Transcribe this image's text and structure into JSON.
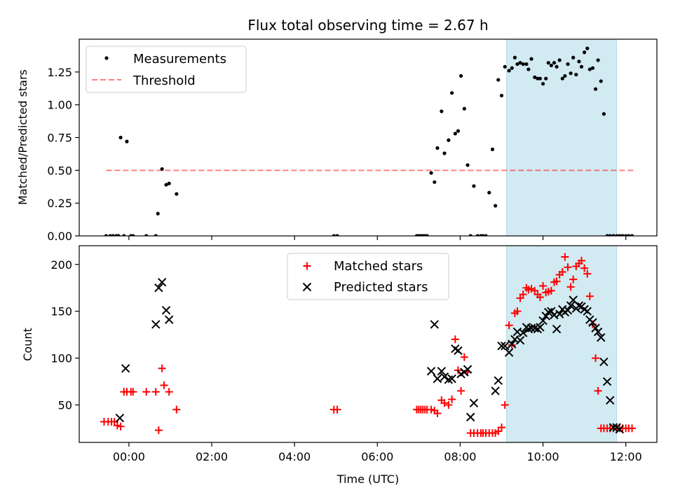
{
  "chart_data": [
    {
      "type": "scatter",
      "title": "Flux total observing time = 2.67 h",
      "xlabel": "",
      "ylabel": "Matched/Predicted stars",
      "xlim": [
        -1.2,
        12.75
      ],
      "ylim": [
        0,
        1.5
      ],
      "yticks": [
        0.0,
        0.25,
        0.5,
        0.75,
        1.0,
        1.25
      ],
      "ytick_labels": [
        "0.00",
        "0.25",
        "0.50",
        "0.75",
        "1.00",
        "1.25"
      ],
      "legend": {
        "placement": "top-left",
        "entries": [
          "Measurements",
          "Threshold"
        ]
      },
      "highlight_span": {
        "x_start": 9.12,
        "x_end": 11.78,
        "color": "#add8e6"
      },
      "threshold": {
        "value": 0.5,
        "x_start": -0.55,
        "x_end": 12.2,
        "color": "#ff0000",
        "style": "dashed"
      },
      "series": [
        {
          "name": "Measurements",
          "marker": "dot",
          "color": "#000000",
          "x": [
            -0.55,
            -0.45,
            -0.38,
            -0.3,
            -0.25,
            -0.2,
            -0.12,
            -0.05,
            0.05,
            0.1,
            0.42,
            0.65,
            0.7,
            0.8,
            0.9,
            0.97,
            1.15,
            4.95,
            5.03,
            6.95,
            7.0,
            7.05,
            7.1,
            7.15,
            7.2,
            7.3,
            7.38,
            7.45,
            7.55,
            7.62,
            7.72,
            7.8,
            7.88,
            7.95,
            8.02,
            8.1,
            8.18,
            8.25,
            8.33,
            8.42,
            8.5,
            8.55,
            8.62,
            8.7,
            8.78,
            8.85,
            8.92,
            9.0,
            9.08,
            9.18,
            9.25,
            9.32,
            9.38,
            9.45,
            9.52,
            9.6,
            9.65,
            9.72,
            9.8,
            9.87,
            9.93,
            10.0,
            10.07,
            10.13,
            10.2,
            10.27,
            10.33,
            10.4,
            10.47,
            10.53,
            10.6,
            10.67,
            10.73,
            10.8,
            10.87,
            10.93,
            11.0,
            11.07,
            11.13,
            11.2,
            11.27,
            11.33,
            11.4,
            11.47,
            11.55,
            11.62,
            11.7,
            11.78,
            11.85,
            11.92,
            12.0,
            12.07,
            12.15
          ],
          "y": [
            0,
            0,
            0,
            0,
            0,
            0.75,
            0,
            0.72,
            0,
            0,
            0,
            0,
            0.17,
            0.51,
            0.39,
            0.4,
            0.32,
            0,
            0,
            0,
            0,
            0,
            0,
            0,
            0,
            0.48,
            0.41,
            0.67,
            0.95,
            0.63,
            0.73,
            1.09,
            0.78,
            0.8,
            1.22,
            0.97,
            0.54,
            0,
            0.38,
            0,
            0,
            0,
            0,
            0.33,
            0.66,
            0.23,
            1.19,
            1.07,
            1.29,
            1.26,
            1.28,
            1.36,
            1.31,
            1.32,
            1.31,
            1.31,
            1.27,
            1.35,
            1.21,
            1.2,
            1.2,
            1.16,
            1.2,
            1.32,
            1.3,
            1.32,
            1.29,
            1.34,
            1.2,
            1.22,
            1.31,
            1.24,
            1.36,
            1.23,
            1.33,
            1.29,
            1.4,
            1.43,
            1.27,
            1.28,
            1.12,
            1.34,
            1.18,
            0.93,
            0,
            0,
            0,
            0,
            0,
            0,
            0,
            0,
            0
          ]
        }
      ]
    },
    {
      "type": "scatter",
      "title": "",
      "xlabel": "Time (UTC)",
      "ylabel": "Count",
      "xlim": [
        -1.2,
        12.75
      ],
      "ylim": [
        10,
        220
      ],
      "yticks": [
        50,
        100,
        150,
        200
      ],
      "ytick_labels": [
        "50",
        "100",
        "150",
        "200"
      ],
      "xticks": [
        0,
        2,
        4,
        6,
        8,
        10,
        12
      ],
      "xtick_labels": [
        "00:00",
        "02:00",
        "04:00",
        "06:00",
        "08:00",
        "10:00",
        "12:00"
      ],
      "legend": {
        "placement": "upper-center",
        "entries": [
          "Matched stars",
          "Predicted stars"
        ]
      },
      "highlight_span": {
        "x_start": 9.12,
        "x_end": 11.78,
        "color": "#add8e6"
      },
      "series": [
        {
          "name": "Matched stars",
          "marker": "plus",
          "color": "#ff0000",
          "x": [
            -0.6,
            -0.5,
            -0.42,
            -0.35,
            -0.28,
            -0.2,
            -0.12,
            -0.05,
            0.05,
            0.1,
            0.42,
            0.65,
            0.72,
            0.8,
            0.85,
            0.97,
            1.15,
            4.95,
            5.03,
            6.95,
            7.0,
            7.05,
            7.1,
            7.15,
            7.2,
            7.3,
            7.38,
            7.45,
            7.55,
            7.62,
            7.72,
            7.8,
            7.88,
            7.95,
            8.02,
            8.1,
            8.18,
            8.25,
            8.33,
            8.42,
            8.5,
            8.55,
            8.62,
            8.7,
            8.78,
            8.85,
            8.92,
            9.0,
            9.08,
            9.18,
            9.25,
            9.32,
            9.38,
            9.45,
            9.52,
            9.6,
            9.65,
            9.72,
            9.8,
            9.87,
            9.93,
            10.0,
            10.07,
            10.13,
            10.2,
            10.27,
            10.33,
            10.4,
            10.47,
            10.53,
            10.6,
            10.67,
            10.73,
            10.8,
            10.87,
            10.93,
            11.0,
            11.07,
            11.13,
            11.2,
            11.27,
            11.33,
            11.4,
            11.47,
            11.55,
            11.62,
            11.7,
            11.78,
            11.85,
            11.92,
            12.0,
            12.07,
            12.15
          ],
          "y": [
            32,
            32,
            32,
            32,
            28,
            27,
            64,
            64,
            64,
            64,
            64,
            64,
            23,
            89,
            71,
            64,
            45,
            45,
            45,
            45,
            45,
            45,
            45,
            45,
            45,
            45,
            44,
            41,
            55,
            52,
            50,
            56,
            120,
            87,
            65,
            101,
            85,
            20,
            20,
            20,
            20,
            20,
            20,
            20,
            20,
            20,
            22,
            26,
            50,
            135,
            114,
            148,
            150,
            164,
            168,
            175,
            173,
            174,
            172,
            168,
            165,
            177,
            170,
            171,
            172,
            181,
            182,
            189,
            192,
            208,
            197,
            176,
            184,
            198,
            201,
            204,
            196,
            190,
            166,
            136,
            100,
            65,
            25,
            25,
            25,
            25,
            25,
            25,
            25,
            25,
            25,
            25,
            25
          ]
        },
        {
          "name": "Predicted stars",
          "marker": "x",
          "color": "#000000",
          "x": [
            -0.22,
            -0.08,
            0.65,
            0.72,
            0.8,
            0.9,
            0.97,
            7.3,
            7.38,
            7.45,
            7.55,
            7.62,
            7.72,
            7.8,
            7.88,
            7.95,
            8.02,
            8.1,
            8.18,
            8.25,
            8.33,
            8.85,
            8.92,
            9.0,
            9.08,
            9.18,
            9.25,
            9.32,
            9.38,
            9.45,
            9.52,
            9.6,
            9.65,
            9.72,
            9.8,
            9.87,
            9.93,
            10.0,
            10.07,
            10.13,
            10.2,
            10.27,
            10.33,
            10.4,
            10.47,
            10.53,
            10.6,
            10.67,
            10.73,
            10.8,
            10.87,
            10.93,
            11.0,
            11.07,
            11.13,
            11.2,
            11.27,
            11.33,
            11.4,
            11.47,
            11.55,
            11.62,
            11.7,
            11.78,
            11.85
          ],
          "y": [
            36,
            89,
            136,
            175,
            181,
            151,
            141,
            86,
            136,
            78,
            86,
            80,
            77,
            78,
            110,
            108,
            83,
            85,
            88,
            37,
            52,
            65,
            76,
            113,
            113,
            106,
            115,
            120,
            128,
            119,
            127,
            133,
            131,
            132,
            132,
            131,
            133,
            140,
            145,
            149,
            150,
            146,
            131,
            147,
            152,
            149,
            151,
            156,
            162,
            153,
            156,
            155,
            152,
            150,
            141,
            138,
            132,
            128,
            122,
            96,
            75,
            55,
            26,
            26,
            24
          ]
        }
      ]
    }
  ]
}
